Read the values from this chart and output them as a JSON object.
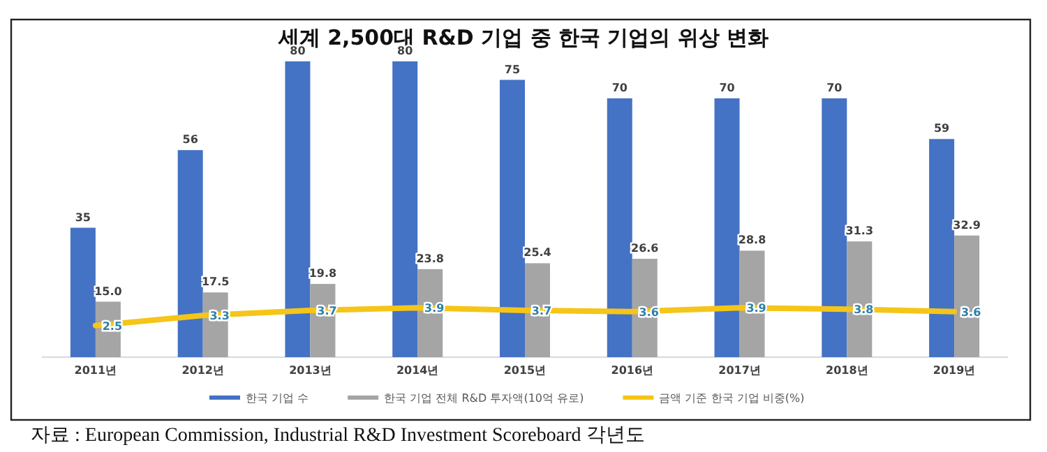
{
  "chart_data": {
    "type": "bar",
    "title": "세계 2,500대 R&D 기업 중 한국 기업의 위상 변화",
    "categories": [
      "2011년",
      "2012년",
      "2013년",
      "2014년",
      "2015년",
      "2016년",
      "2017년",
      "2018년",
      "2019년"
    ],
    "series": [
      {
        "name": "한국 기업 수",
        "color": "#4472c4",
        "values": [
          35,
          56,
          80,
          80,
          75,
          70,
          70,
          70,
          59
        ]
      },
      {
        "name": "한국 기업 전체 R&D 투자액(10억 유로)",
        "color": "#a5a5a5",
        "values": [
          15.0,
          17.5,
          19.8,
          23.8,
          25.4,
          26.6,
          28.8,
          31.3,
          32.9
        ],
        "value_labels": [
          "15.0",
          "17.5",
          "19.8",
          "23.8",
          "25.4",
          "26.6",
          "28.8",
          "31.3",
          "32.9"
        ]
      },
      {
        "name": "금액 기준 한국 기업 비중(%)",
        "color": "#f5c518",
        "type": "line",
        "axis": "y2",
        "values": [
          2.5,
          3.3,
          3.7,
          3.9,
          3.7,
          3.6,
          3.9,
          3.8,
          3.6
        ]
      }
    ],
    "data_labels": true,
    "legend": "bottom",
    "annotations": [
      "자료 : European Commission, Industrial R&D Investment Scoreboard 각년도"
    ]
  }
}
